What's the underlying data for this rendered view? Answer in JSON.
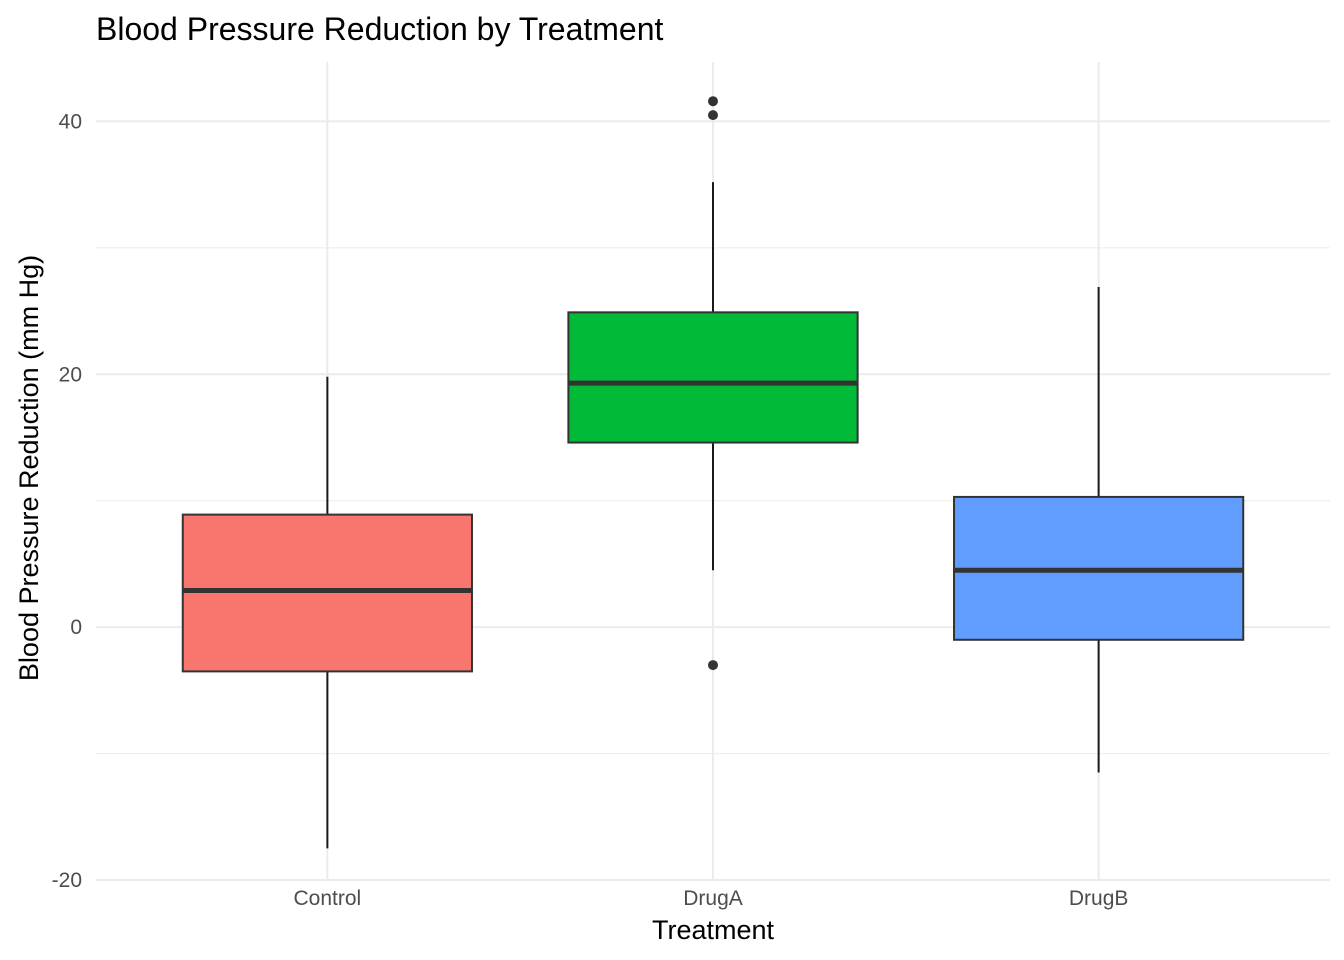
{
  "chart_data": {
    "type": "box",
    "title": "Blood Pressure Reduction by Treatment",
    "xlabel": "Treatment",
    "ylabel": "Blood Pressure Reduction (mm Hg)",
    "ylim": [
      -20,
      44.7
    ],
    "y_ticks": [
      -20,
      0,
      20,
      40
    ],
    "y_tick_labels": [
      "-20",
      "0",
      "20",
      "40"
    ],
    "grid": true,
    "legend": "none",
    "categories": [
      "Control",
      "DrugA",
      "DrugB"
    ],
    "series": [
      {
        "category": "Control",
        "color": "#F8766D",
        "whisker_low": -17.5,
        "q1": -3.5,
        "median": 2.9,
        "q3": 8.9,
        "whisker_high": 19.8,
        "outliers": []
      },
      {
        "category": "DrugA",
        "color": "#00BA38",
        "whisker_low": 4.5,
        "q1": 14.6,
        "median": 19.3,
        "q3": 24.9,
        "whisker_high": 35.2,
        "outliers": [
          41.6,
          40.5,
          -3.0
        ]
      },
      {
        "category": "DrugB",
        "color": "#619CFF",
        "whisker_low": -11.5,
        "q1": -1.0,
        "median": 4.5,
        "q3": 10.3,
        "whisker_high": 26.9,
        "outliers": []
      }
    ]
  }
}
